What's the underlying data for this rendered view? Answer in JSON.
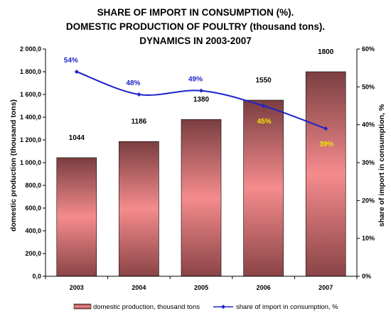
{
  "title_lines": [
    "SHARE OF IMPORT IN CONSUMPTION (%).",
    "DOMESTIC PRODUCTION OF POULTRY (thousand tons).",
    "DYNAMICS IN 2003-2007"
  ],
  "colors": {
    "bar_top": "#7a3e40",
    "bar_mid": "#f58b8d",
    "bar_bottom": "#8a4446",
    "line": "#1f23c9",
    "label_blue": "#1f23c9",
    "label_yellow": "#f2e600"
  },
  "chart_data": {
    "type": "bar",
    "categories": [
      "2003",
      "2004",
      "2005",
      "2006",
      "2007"
    ],
    "series": [
      {
        "name": "domestic production, thousand tons",
        "type": "bar",
        "axis": "left",
        "values": [
          1044,
          1186,
          1380,
          1550,
          1800
        ],
        "labels": [
          "1044",
          "1186",
          "1380",
          "1550",
          "1800"
        ]
      },
      {
        "name": "share of import in consumption, %",
        "type": "line",
        "axis": "right",
        "values": [
          54,
          48,
          49,
          45,
          39
        ],
        "labels": [
          "54%",
          "48%",
          "49%",
          "45%",
          "39%"
        ],
        "label_colors": [
          "blue",
          "blue",
          "blue",
          "yellow",
          "yellow"
        ]
      }
    ],
    "ylabel": "domestic production (thousand tons)",
    "ylabel_right": "share of import in consumption, %",
    "ylim": [
      0,
      2000
    ],
    "ylim_right": [
      0,
      60
    ],
    "y_ticks": [
      "0,0",
      "200,0",
      "400,0",
      "600,0",
      "800,0",
      "1 000,0",
      "1 200,0",
      "1 400,0",
      "1 600,0",
      "1 800,0",
      "2 000,0"
    ],
    "y_ticks_right": [
      "0%",
      "10%",
      "20%",
      "30%",
      "40%",
      "50%",
      "60%"
    ],
    "grid": false,
    "legend_position": "bottom"
  }
}
